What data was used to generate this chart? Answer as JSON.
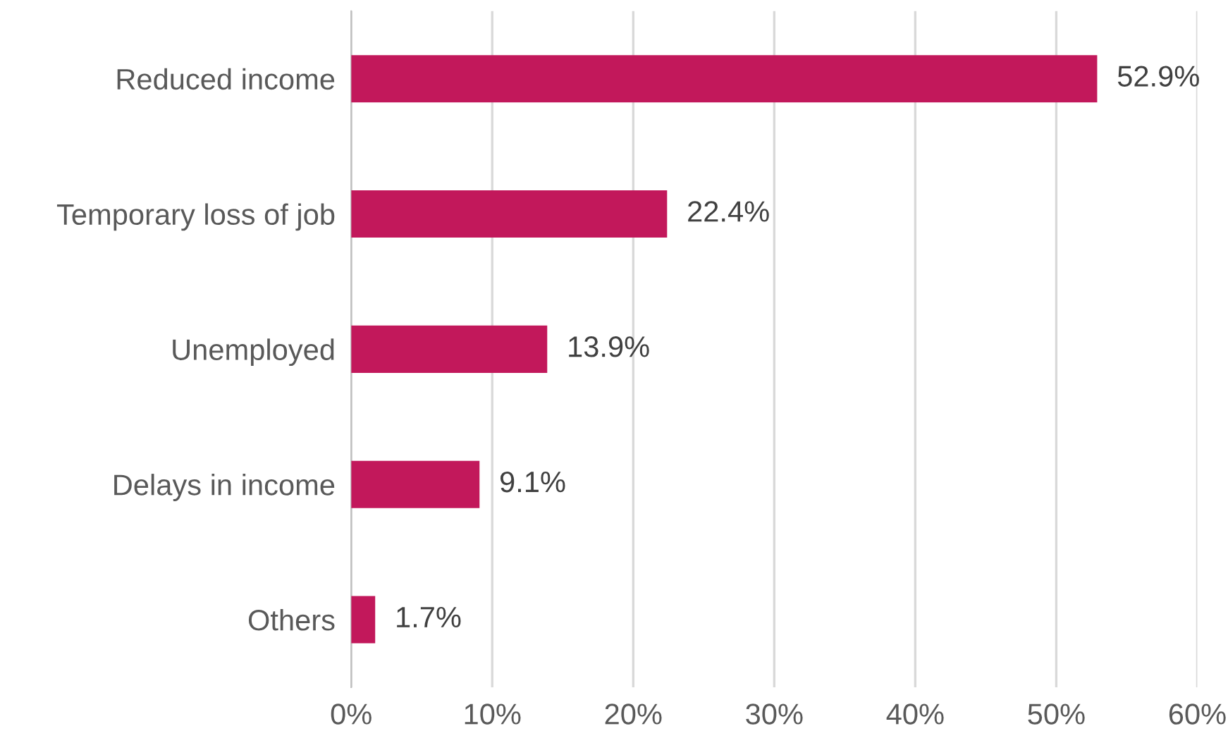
{
  "chart_data": {
    "type": "bar",
    "orientation": "horizontal",
    "categories": [
      "Reduced income",
      "Temporary loss of job",
      "Unemployed",
      "Delays in income",
      "Others"
    ],
    "values": [
      52.9,
      22.4,
      13.9,
      9.1,
      1.7
    ],
    "value_labels": [
      "52.9%",
      "22.4%",
      "13.9%",
      "9.1%",
      "1.7%"
    ],
    "color": "#c2185b",
    "xlim": [
      0,
      60
    ],
    "xticks": [
      {
        "value": 0,
        "label": "0%"
      },
      {
        "value": 10,
        "label": "10%"
      },
      {
        "value": 20,
        "label": "20%"
      },
      {
        "value": 30,
        "label": "30%"
      },
      {
        "value": 40,
        "label": "40%"
      },
      {
        "value": 50,
        "label": "50%"
      },
      {
        "value": 60,
        "label": "60%"
      }
    ],
    "grid": "x"
  }
}
